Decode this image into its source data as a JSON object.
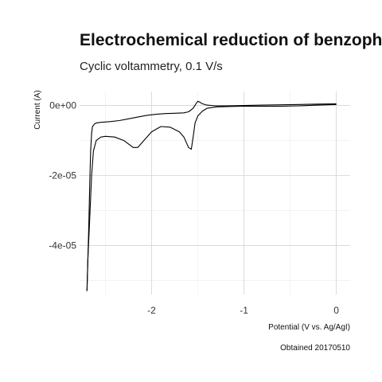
{
  "chart_data": {
    "type": "line",
    "title": "Electrochemical reduction of benzophenone",
    "subtitle": "Cyclic voltammetry, 0.1 V/s",
    "xlabel": "Potential (V vs. Ag/AgI)",
    "ylabel": "Current (A)",
    "caption": "Obtained 20170510",
    "xlim": [
      -2.78,
      0.15
    ],
    "ylim": [
      -5.4e-05,
      4e-06
    ],
    "x_ticks": [
      -2,
      -1,
      0
    ],
    "x_tick_labels": [
      "-2",
      "-1",
      "0"
    ],
    "y_ticks": [
      0,
      -2e-05,
      -4e-05
    ],
    "y_tick_labels": [
      "0e+00",
      "-2e-05",
      "-4e-05"
    ],
    "grid": true,
    "line_color": "#000000",
    "series": [
      {
        "x": [
          -2.7,
          -2.69,
          -2.68,
          -2.67,
          -2.66,
          -2.65,
          -2.64,
          -2.62,
          -2.6,
          -2.55,
          -2.45,
          -2.35,
          -2.25,
          -2.15,
          -2.05,
          -1.95,
          -1.85,
          -1.75,
          -1.65,
          -1.6,
          -1.55,
          -1.52,
          -1.5,
          -1.48,
          -1.45,
          -1.4,
          -1.3,
          -1.2,
          -1.0,
          -0.8,
          -0.6,
          -0.4,
          -0.2,
          0.0
        ],
        "y": [
          -5.3e-05,
          -4.4e-05,
          -3.4e-05,
          -2.2e-05,
          -1.3e-05,
          -8e-06,
          -6e-06,
          -5.3e-06,
          -5e-06,
          -4.8e-06,
          -4.6e-06,
          -4.3e-06,
          -3.8e-06,
          -3.3e-06,
          -2.8e-06,
          -2.5e-06,
          -2.3e-06,
          -2.2e-06,
          -2.1e-06,
          -1.8e-06,
          -8e-07,
          5e-07,
          1.2e-06,
          1e-06,
          5e-07,
          1e-07,
          -1e-07,
          -1e-07,
          0.0,
          1e-07,
          2e-07,
          3e-07,
          4e-07,
          5e-07
        ]
      },
      {
        "x": [
          0.0,
          -0.2,
          -0.4,
          -0.6,
          -0.8,
          -1.0,
          -1.2,
          -1.3,
          -1.4,
          -1.45,
          -1.5,
          -1.53,
          -1.55,
          -1.57,
          -1.6,
          -1.65,
          -1.7,
          -1.8,
          -1.9,
          -2.0,
          -2.1,
          -2.15,
          -2.2,
          -2.25,
          -2.3,
          -2.4,
          -2.5,
          -2.55,
          -2.6,
          -2.63,
          -2.65,
          -2.67,
          -2.69,
          -2.7
        ],
        "y": [
          3e-07,
          1e-07,
          -1e-07,
          -2e-07,
          -2e-07,
          -2e-07,
          -3e-07,
          -4e-07,
          -8e-07,
          -1.6e-06,
          -3e-06,
          -5e-06,
          -9e-06,
          -1.25e-05,
          -1.2e-05,
          -9e-06,
          -7.5e-06,
          -6.2e-06,
          -6e-06,
          -7.5e-06,
          -1.05e-05,
          -1.2e-05,
          -1.2e-05,
          -1.1e-05,
          -1e-05,
          -9e-06,
          -8.8e-06,
          -9e-06,
          -1e-05,
          -1.3e-05,
          -2e-05,
          -3.2e-05,
          -4.4e-05,
          -5.3e-05
        ]
      }
    ]
  }
}
